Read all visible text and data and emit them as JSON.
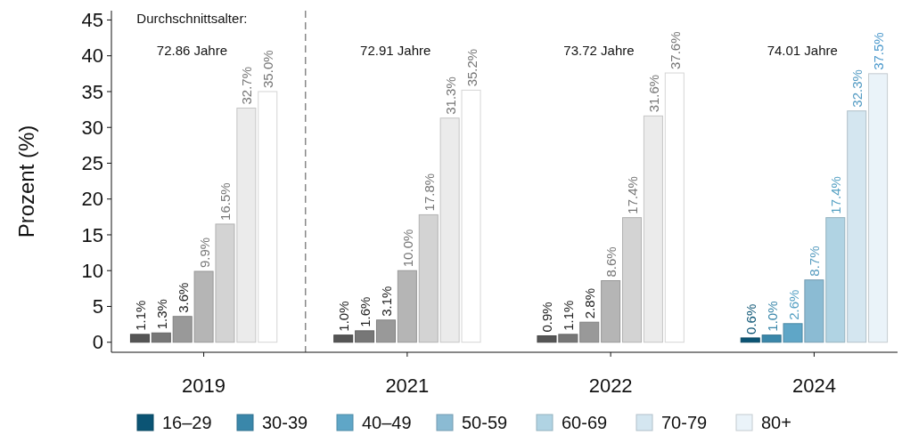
{
  "chart_data": {
    "type": "bar",
    "ylabel": "Prozent (%)",
    "categories": [
      "2019",
      "2021",
      "2022",
      "2024"
    ],
    "series": [
      {
        "name": "16–29",
        "color": "#0b5474",
        "colors": [
          "#555555",
          "#555555",
          "#555555",
          "#0b5474"
        ],
        "values": [
          1.1,
          1.0,
          0.9,
          0.6
        ],
        "value_labels": [
          "1.1%",
          "1.0%",
          "0.9%",
          "0.6%"
        ]
      },
      {
        "name": "30-39",
        "color": "#3a87aa",
        "colors": [
          "#777777",
          "#777777",
          "#777777",
          "#3a87aa"
        ],
        "values": [
          1.3,
          1.6,
          1.1,
          1.0
        ],
        "value_labels": [
          "1.3%",
          "1.6%",
          "1.1%",
          "1.0%"
        ]
      },
      {
        "name": "40–49",
        "color": "#5fa6c7",
        "colors": [
          "#999999",
          "#999999",
          "#999999",
          "#5fa6c7"
        ],
        "values": [
          3.6,
          3.1,
          2.8,
          2.6
        ],
        "value_labels": [
          "3.6%",
          "3.1%",
          "2.8%",
          "2.6%"
        ]
      },
      {
        "name": "50-59",
        "color": "#8bbbd3",
        "colors": [
          "#b5b5b5",
          "#b5b5b5",
          "#b5b5b5",
          "#8bbbd3"
        ],
        "values": [
          9.9,
          10.0,
          8.6,
          8.7
        ],
        "value_labels": [
          "9.9%",
          "10.0%",
          "8.6%",
          "8.7%"
        ]
      },
      {
        "name": "60-69",
        "color": "#b0d3e3",
        "colors": [
          "#d3d3d3",
          "#d3d3d3",
          "#d3d3d3",
          "#b0d3e3"
        ],
        "values": [
          16.5,
          17.8,
          17.4,
          17.4
        ],
        "value_labels": [
          "16.5%",
          "17.8%",
          "17.4%",
          "17.4%"
        ]
      },
      {
        "name": "70-79",
        "color": "#d4e6f0",
        "colors": [
          "#ebebeb",
          "#ebebeb",
          "#ebebeb",
          "#d4e6f0"
        ],
        "values": [
          32.7,
          31.3,
          31.6,
          32.3
        ],
        "value_labels": [
          "32.7%",
          "31.3%",
          "31.6%",
          "32.3%"
        ]
      },
      {
        "name": "80+",
        "color": "#eaf3f9",
        "colors": [
          "#ffffff",
          "#ffffff",
          "#ffffff",
          "#eaf3f9"
        ],
        "values": [
          35.0,
          35.2,
          37.6,
          37.5
        ],
        "value_labels": [
          "35.0%",
          "35.2%",
          "37.6%",
          "37.5%"
        ]
      }
    ],
    "annotations": [
      "Durchschnittsalter:",
      "72.86 Jahre",
      "72.91 Jahre",
      "73.72 Jahre",
      "74.01 Jahre"
    ],
    "ylim": [
      -1.4,
      46.3
    ],
    "yticks": [
      0,
      5,
      10,
      15,
      20,
      25,
      30,
      35,
      40,
      45
    ],
    "legend": "bottom"
  }
}
